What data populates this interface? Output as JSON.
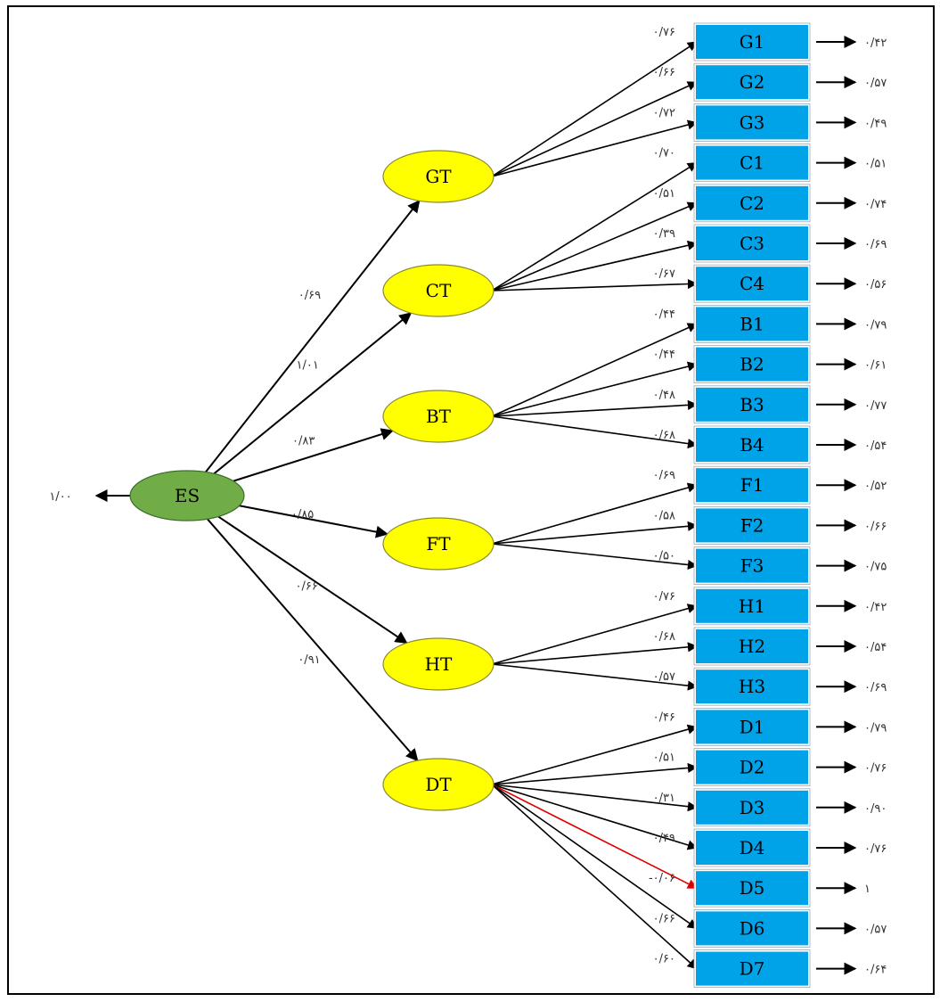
{
  "root": {
    "label": "ES",
    "left_value": "۱/۰۰",
    "color": "#70ad47"
  },
  "factors": [
    {
      "label": "GT",
      "path": "۰/۶۹",
      "indicators": [
        {
          "label": "G1",
          "loading": "۰/۷۶",
          "error": "۰/۴۲"
        },
        {
          "label": "G2",
          "loading": "۰/۶۶",
          "error": "۰/۵۷"
        },
        {
          "label": "G3",
          "loading": "۰/۷۲",
          "error": "۰/۴۹"
        }
      ]
    },
    {
      "label": "CT",
      "path": "۱/۰۱",
      "indicators": [
        {
          "label": "C1",
          "loading": "۰/۷۰",
          "error": "۰/۵۱"
        },
        {
          "label": "C2",
          "loading": "۰/۵۱",
          "error": "۰/۷۴"
        },
        {
          "label": "C3",
          "loading": "۰/۳۹",
          "error": "۰/۶۹"
        },
        {
          "label": "C4",
          "loading": "۰/۶۷",
          "error": "۰/۵۶"
        }
      ]
    },
    {
      "label": "BT",
      "path": "۰/۸۳",
      "indicators": [
        {
          "label": "B1",
          "loading": "۰/۴۴",
          "error": "۰/۷۹"
        },
        {
          "label": "B2",
          "loading": "۰/۴۴",
          "error": "۰/۶۱"
        },
        {
          "label": "B3",
          "loading": "۰/۴۸",
          "error": "۰/۷۷"
        },
        {
          "label": "B4",
          "loading": "۰/۶۸",
          "error": "۰/۵۴"
        }
      ]
    },
    {
      "label": "FT",
      "path": "۰/۸۵",
      "indicators": [
        {
          "label": "F1",
          "loading": "۰/۶۹",
          "error": "۰/۵۲"
        },
        {
          "label": "F2",
          "loading": "۰/۵۸",
          "error": "۰/۶۶"
        },
        {
          "label": "F3",
          "loading": "۰/۵۰",
          "error": "۰/۷۵"
        }
      ]
    },
    {
      "label": "HT",
      "path": "۰/۶۶",
      "indicators": [
        {
          "label": "H1",
          "loading": "۰/۷۶",
          "error": "۰/۴۲"
        },
        {
          "label": "H2",
          "loading": "۰/۶۸",
          "error": "۰/۵۴"
        },
        {
          "label": "H3",
          "loading": "۰/۵۷",
          "error": "۰/۶۹"
        }
      ]
    },
    {
      "label": "DT",
      "path": "۰/۹۱",
      "indicators": [
        {
          "label": "D1",
          "loading": "۰/۴۶",
          "error": "۰/۷۹"
        },
        {
          "label": "D2",
          "loading": "۰/۵۱",
          "error": "۰/۷۶"
        },
        {
          "label": "D3",
          "loading": "۰/۳۱",
          "error": "۰/۹۰"
        },
        {
          "label": "D4",
          "loading": "۰/۴۹",
          "error": "۰/۷۶"
        },
        {
          "label": "D5",
          "loading": "-۰/۰۶",
          "error": "۱",
          "negative": true
        },
        {
          "label": "D6",
          "loading": "۰/۶۶",
          "error": "۰/۵۷"
        },
        {
          "label": "D7",
          "loading": "۰/۶۰",
          "error": "۰/۶۴"
        }
      ]
    }
  ],
  "colors": {
    "factor_fill": "#ffff00",
    "indicator_fill": "#00a2e8",
    "negative_arrow": "#e00000",
    "arrow": "#000000"
  }
}
